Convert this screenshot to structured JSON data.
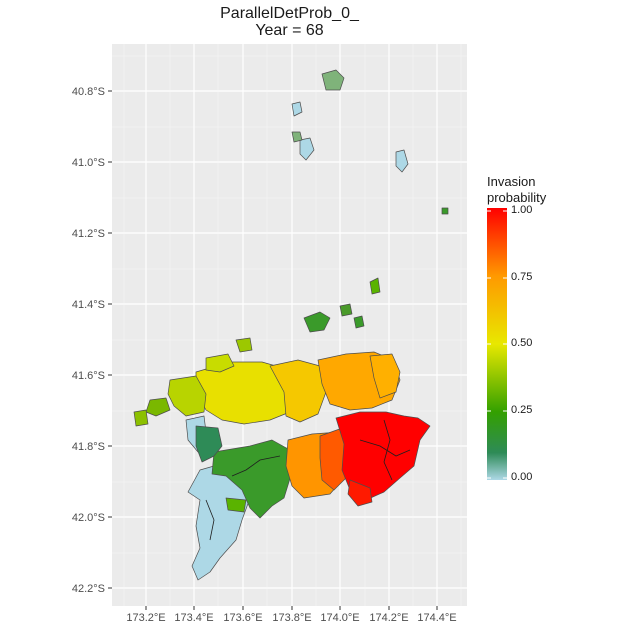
{
  "title": "ParallelDetProb_0_",
  "subtitle": "Year = 68",
  "legend": {
    "title_line1": "Invasion",
    "title_line2": "probability",
    "labels": [
      "1.00",
      "0.75",
      "0.50",
      "0.25",
      "0.00"
    ],
    "colors": [
      "#ff0000",
      "#ff9900",
      "#e8e800",
      "#33a000",
      "#2e8b57",
      "#add8e6"
    ]
  },
  "axes": {
    "x_ticks": [
      "173.2°E",
      "173.4°E",
      "173.6°E",
      "173.8°E",
      "174.0°E",
      "174.2°E",
      "174.4°E"
    ],
    "y_ticks": [
      "40.8°S",
      "41.0°S",
      "41.2°S",
      "41.4°S",
      "41.6°S",
      "41.8°S",
      "42.0°S",
      "42.2°S"
    ]
  },
  "colors": {
    "panel": "#ebebeb",
    "grid_major": "#ffffff",
    "polygon_border": "#4d4d4d",
    "uninvaded": "#add8e6"
  }
}
